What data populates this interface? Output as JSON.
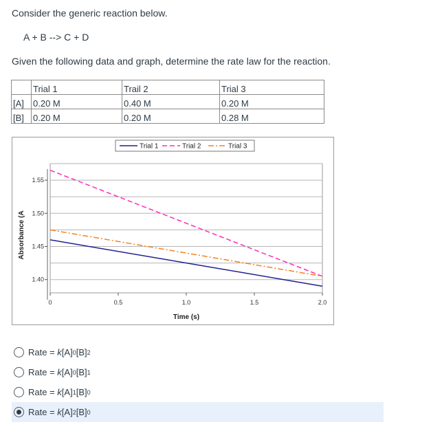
{
  "question": {
    "intro": "Consider the generic reaction below.",
    "equation": "A + B --> C + D",
    "given": "Given the following data and graph, determine the rate law for the reaction."
  },
  "table": {
    "headers": [
      "",
      "Trial 1",
      "Trail 2",
      "Trial 3"
    ],
    "rows": [
      {
        "label": "[A]",
        "values": [
          "0.20 M",
          "0.40 M",
          "0.20 M"
        ]
      },
      {
        "label": "[B]",
        "values": [
          "0.20 M",
          "0.20 M",
          "0.28 M"
        ]
      }
    ]
  },
  "chart_data": {
    "type": "line",
    "title": "",
    "xlabel": "Time (s)",
    "ylabel": "Absorbance (A",
    "xlim": [
      0,
      2.0
    ],
    "ylim": [
      1.38,
      1.575
    ],
    "x_ticks": [
      "0",
      "0.5",
      "1.0",
      "1.5",
      "2.0"
    ],
    "y_ticks": [
      "1.40",
      "1.45",
      "1.50",
      "1.55"
    ],
    "legend": "top",
    "series": [
      {
        "name": "Trial 1",
        "style": "solid",
        "color": "#1f1f8f",
        "x": [
          0,
          2.0
        ],
        "y": [
          1.46,
          1.39
        ]
      },
      {
        "name": "Trial 2",
        "style": "dashed",
        "color": "#ff2ab8",
        "x": [
          0,
          2.0
        ],
        "y": [
          1.565,
          1.405
        ]
      },
      {
        "name": "Trial 3",
        "style": "dashdot",
        "color": "#f58220",
        "x": [
          0,
          2.0
        ],
        "y": [
          1.475,
          1.405
        ]
      }
    ]
  },
  "answers": [
    {
      "prefix": "Rate = ",
      "k": "k",
      "a": "[A]",
      "a_exp": "0",
      "b": "[B]",
      "b_exp": "2",
      "selected": false
    },
    {
      "prefix": "Rate = ",
      "k": "k",
      "a": "[A]",
      "a_exp": "0",
      "b": "[B]",
      "b_exp": "1",
      "selected": false
    },
    {
      "prefix": "Rate = ",
      "k": "k",
      "a": "[A]",
      "a_exp": "1",
      "b": "[B]",
      "b_exp": "0",
      "selected": false
    },
    {
      "prefix": "Rate = ",
      "k": "k",
      "a": "[A]",
      "a_exp": "2",
      "b": "[B]",
      "b_exp": "0",
      "selected": true
    }
  ]
}
